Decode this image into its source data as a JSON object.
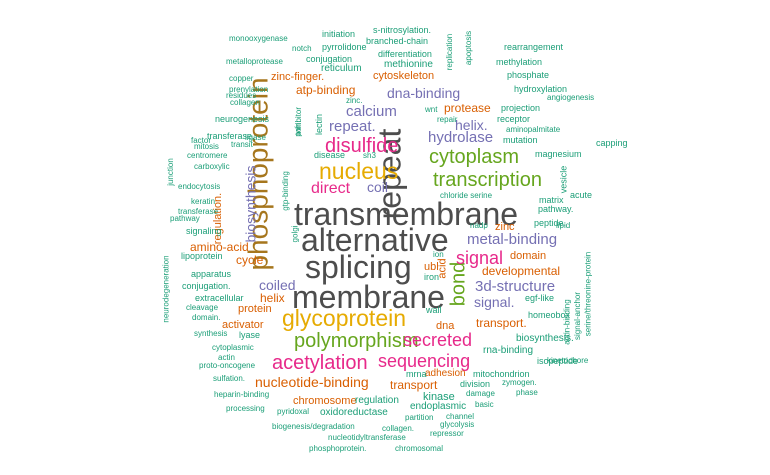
{
  "colors": {
    "gray": "#4d4d4d",
    "green": "#1b9e77",
    "orange": "#d95f02",
    "purple": "#7570b3",
    "magenta": "#e7298a",
    "lime": "#66a61e",
    "gold": "#e6ab02",
    "brown": "#a6761d"
  },
  "words": [
    {
      "text": "transmembrane",
      "color": "gray"
    },
    {
      "text": "alternative",
      "color": "gray"
    },
    {
      "text": "splicing",
      "color": "gray"
    },
    {
      "text": "membrane",
      "color": "gray"
    },
    {
      "text": "repeat",
      "color": "gray"
    },
    {
      "text": "phosphoprotein",
      "color": "brown"
    },
    {
      "text": "glycoprotein",
      "color": "gold"
    },
    {
      "text": "nucleus",
      "color": "gold"
    },
    {
      "text": "polymorphism",
      "color": "lime"
    },
    {
      "text": "acetylation",
      "color": "magenta"
    },
    {
      "text": "transcription",
      "color": "lime"
    },
    {
      "text": "cytoplasm",
      "color": "lime"
    },
    {
      "text": "disulfide",
      "color": "magenta"
    },
    {
      "text": "sequencing",
      "color": "magenta"
    },
    {
      "text": "secreted",
      "color": "magenta"
    },
    {
      "text": "bond",
      "color": "lime"
    },
    {
      "text": "signal",
      "color": "magenta"
    },
    {
      "text": "metal-binding",
      "color": "purple"
    },
    {
      "text": "3d-structure",
      "color": "purple"
    },
    {
      "text": "hydrolase",
      "color": "purple"
    },
    {
      "text": "repeat.",
      "color": "purple"
    },
    {
      "text": "calcium",
      "color": "purple"
    },
    {
      "text": "direct",
      "color": "magenta"
    },
    {
      "text": "coil",
      "color": "purple"
    },
    {
      "text": "dna-binding",
      "color": "purple"
    },
    {
      "text": "helix.",
      "color": "purple"
    },
    {
      "text": "nucleotide-binding",
      "color": "orange"
    },
    {
      "text": "biosynthesis",
      "color": "purple"
    },
    {
      "text": "coiled",
      "color": "purple"
    },
    {
      "text": "signal.",
      "color": "purple"
    },
    {
      "text": "developmental",
      "color": "orange"
    },
    {
      "text": "transport.",
      "color": "orange"
    },
    {
      "text": "protease",
      "color": "orange"
    },
    {
      "text": "transport",
      "color": "orange"
    },
    {
      "text": "helix",
      "color": "orange"
    },
    {
      "text": "cycle",
      "color": "orange"
    },
    {
      "text": "amino-acid",
      "color": "orange"
    },
    {
      "text": "atp-binding",
      "color": "orange"
    },
    {
      "text": "cytoskeleton",
      "color": "orange"
    },
    {
      "text": "zinc-finger.",
      "color": "orange"
    },
    {
      "text": "regulation.",
      "color": "orange"
    },
    {
      "text": "chromosome",
      "color": "orange"
    },
    {
      "text": "adhesion",
      "color": "orange"
    },
    {
      "text": "domain",
      "color": "orange"
    },
    {
      "text": "ubl",
      "color": "orange"
    },
    {
      "text": "acid",
      "color": "orange"
    },
    {
      "text": "zinc",
      "color": "orange"
    },
    {
      "text": "activator",
      "color": "orange"
    },
    {
      "text": "protein",
      "color": "orange"
    },
    {
      "text": "dna",
      "color": "orange"
    },
    {
      "text": "kinase",
      "color": "green"
    },
    {
      "text": "endoplasmic",
      "color": "green"
    },
    {
      "text": "oxidoreductase",
      "color": "green"
    },
    {
      "text": "regulation",
      "color": "green"
    },
    {
      "text": "rna-binding",
      "color": "green"
    },
    {
      "text": "biosynthesis.",
      "color": "green"
    },
    {
      "text": "mitochondrion",
      "color": "green"
    },
    {
      "text": "division",
      "color": "green"
    },
    {
      "text": "isopeptide",
      "color": "green"
    },
    {
      "text": "mrna",
      "color": "green"
    },
    {
      "text": "homeobox",
      "color": "green"
    },
    {
      "text": "egf-like",
      "color": "green"
    },
    {
      "text": "wall",
      "color": "green"
    },
    {
      "text": "iron",
      "color": "green"
    },
    {
      "text": "ion",
      "color": "green"
    },
    {
      "text": "nadp",
      "color": "green"
    },
    {
      "text": "peptide.",
      "color": "green"
    },
    {
      "text": "pathway.",
      "color": "green"
    },
    {
      "text": "matrix",
      "color": "green"
    },
    {
      "text": "chloride serine",
      "color": "green"
    },
    {
      "text": "acute",
      "color": "green"
    },
    {
      "text": "vesicle",
      "color": "green"
    },
    {
      "text": "magnesium",
      "color": "green"
    },
    {
      "text": "capping",
      "color": "green"
    },
    {
      "text": "mutation",
      "color": "green"
    },
    {
      "text": "aminopalmitate",
      "color": "green"
    },
    {
      "text": "receptor",
      "color": "green"
    },
    {
      "text": "projection",
      "color": "green"
    },
    {
      "text": "angiogenesis",
      "color": "green"
    },
    {
      "text": "hydroxylation",
      "color": "green"
    },
    {
      "text": "phosphate",
      "color": "green"
    },
    {
      "text": "methylation",
      "color": "green"
    },
    {
      "text": "rearrangement",
      "color": "green"
    },
    {
      "text": "replication",
      "color": "green"
    },
    {
      "text": "apoptosis",
      "color": "green"
    },
    {
      "text": "s-nitrosylation.",
      "color": "green"
    },
    {
      "text": "initiation",
      "color": "green"
    },
    {
      "text": "branched-chain",
      "color": "green"
    },
    {
      "text": "differentiation",
      "color": "green"
    },
    {
      "text": "methionine",
      "color": "green"
    },
    {
      "text": "pyrrolidone",
      "color": "green"
    },
    {
      "text": "conjugation",
      "color": "green"
    },
    {
      "text": "reticulum",
      "color": "green"
    },
    {
      "text": "notch",
      "color": "green"
    },
    {
      "text": "monooxygenase",
      "color": "green"
    },
    {
      "text": "metalloprotease",
      "color": "green"
    },
    {
      "text": "copper",
      "color": "green"
    },
    {
      "text": "prenylation",
      "color": "green"
    },
    {
      "text": "residues",
      "color": "green"
    },
    {
      "text": "collagen",
      "color": "green"
    },
    {
      "text": "neurogenesis",
      "color": "green"
    },
    {
      "text": "transferase.",
      "color": "green"
    },
    {
      "text": "mitosis",
      "color": "green"
    },
    {
      "text": "transit",
      "color": "green"
    },
    {
      "text": "factor",
      "color": "green"
    },
    {
      "text": "ligase",
      "color": "green"
    },
    {
      "text": "centromere",
      "color": "green"
    },
    {
      "text": "carboxylic",
      "color": "green"
    },
    {
      "text": "endocytosis",
      "color": "green"
    },
    {
      "text": "junction",
      "color": "green"
    },
    {
      "text": "keratin",
      "color": "green"
    },
    {
      "text": "transferase",
      "color": "green"
    },
    {
      "text": "pathway",
      "color": "green"
    },
    {
      "text": "signaling",
      "color": "green"
    },
    {
      "text": "lipoprotein",
      "color": "green"
    },
    {
      "text": "apparatus",
      "color": "green"
    },
    {
      "text": "conjugation.",
      "color": "green"
    },
    {
      "text": "extracellular",
      "color": "green"
    },
    {
      "text": "cleavage",
      "color": "green"
    },
    {
      "text": "domain.",
      "color": "green"
    },
    {
      "text": "neurodegeneration",
      "color": "green"
    },
    {
      "text": "synthesis",
      "color": "green"
    },
    {
      "text": "lyase",
      "color": "green"
    },
    {
      "text": "cytoplasmic",
      "color": "green"
    },
    {
      "text": "actin",
      "color": "green"
    },
    {
      "text": "proto-oncogene",
      "color": "green"
    },
    {
      "text": "sulfation.",
      "color": "green"
    },
    {
      "text": "heparin-binding",
      "color": "green"
    },
    {
      "text": "processing",
      "color": "green"
    },
    {
      "text": "pyridoxal",
      "color": "green"
    },
    {
      "text": "biogenesis/degradation",
      "color": "green"
    },
    {
      "text": "collagen.",
      "color": "green"
    },
    {
      "text": "nucleotidyltransferase",
      "color": "green"
    },
    {
      "text": "phosphoprotein.",
      "color": "green"
    },
    {
      "text": "chromosomal",
      "color": "green"
    },
    {
      "text": "partition",
      "color": "green"
    },
    {
      "text": "channel",
      "color": "green"
    },
    {
      "text": "glycolysis",
      "color": "green"
    },
    {
      "text": "repressor",
      "color": "green"
    },
    {
      "text": "basic",
      "color": "green"
    },
    {
      "text": "damage",
      "color": "green"
    },
    {
      "text": "phase",
      "color": "green"
    },
    {
      "text": "zymogen.",
      "color": "green"
    },
    {
      "text": "kinetochore",
      "color": "green"
    },
    {
      "text": "actin-binding",
      "color": "green"
    },
    {
      "text": "signal-anchor",
      "color": "green"
    },
    {
      "text": "serine/threonine-protein",
      "color": "green"
    },
    {
      "text": "lipid",
      "color": "green"
    },
    {
      "text": "disease",
      "color": "green"
    },
    {
      "text": "sh3",
      "color": "green"
    },
    {
      "text": "golgi",
      "color": "green"
    },
    {
      "text": "gtp-binding",
      "color": "green"
    },
    {
      "text": "pair",
      "color": "green"
    },
    {
      "text": "lectin",
      "color": "green"
    },
    {
      "text": "inhibitor",
      "color": "green"
    },
    {
      "text": "zinc.",
      "color": "green"
    },
    {
      "text": "wnt",
      "color": "green"
    },
    {
      "text": "repair",
      "color": "green"
    }
  ]
}
